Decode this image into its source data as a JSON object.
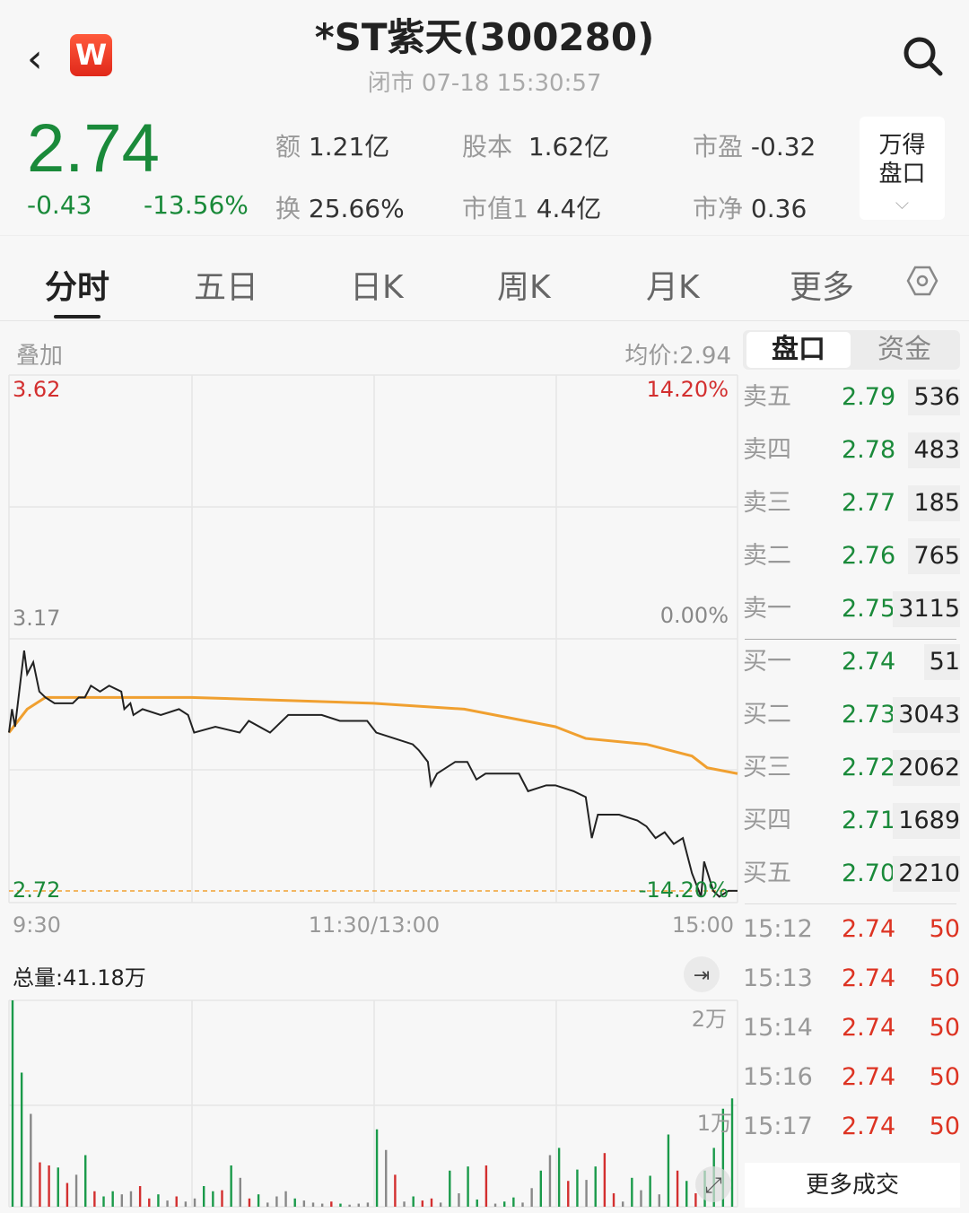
{
  "header": {
    "back_icon": "chevron-left-icon",
    "logo_letter": "W",
    "title": "*ST紫天(300280)",
    "status": "闭市  07-18 15:30:57",
    "search_icon": "search-icon"
  },
  "quote": {
    "price": "2.74",
    "change": "-0.43",
    "change_pct": "-13.56%",
    "color": "#1a8a3a",
    "stats": [
      {
        "k": "额",
        "v": "1.21亿"
      },
      {
        "k": "股本",
        "v": "1.62亿"
      },
      {
        "k": "市盈",
        "v": "-0.32"
      },
      {
        "k": "换",
        "v": "25.66%"
      },
      {
        "k": "市值1",
        "v": "4.4亿"
      },
      {
        "k": "市净",
        "v": "0.36"
      }
    ],
    "wind_button": {
      "line1": "万得",
      "line2": "盘口"
    }
  },
  "tabs": [
    "分时",
    "五日",
    "日K",
    "周K",
    "月K",
    "更多"
  ],
  "settings_icon": "hexagon-settings-icon",
  "chart": {
    "overlay_label": "叠加",
    "avg_label": "均价:2.94",
    "y_top": "3.62",
    "y_mid": "3.17",
    "y_bottom": "2.72",
    "pct_top": "14.20%",
    "pct_mid": "0.00%",
    "pct_bottom": "-14.20%",
    "x_labels": [
      "9:30",
      "11:30/13:00",
      "15:00"
    ],
    "volume_total": "总量:41.18万",
    "vol_ticks": [
      "2万",
      "1万"
    ]
  },
  "chart_data": [
    {
      "type": "line",
      "ylim": [
        2.72,
        3.62
      ],
      "colors": {
        "price": "#222222",
        "avg": "#f0a030"
      },
      "price": [
        [
          "9:30",
          3.01
        ],
        [
          "9:31",
          3.05
        ],
        [
          "9:32",
          3.02
        ],
        [
          "9:35",
          3.15
        ],
        [
          "9:36",
          3.11
        ],
        [
          "9:38",
          3.13
        ],
        [
          "9:40",
          3.08
        ],
        [
          "9:42",
          3.07
        ],
        [
          "9:45",
          3.06
        ],
        [
          "9:51",
          3.06
        ],
        [
          "9:53",
          3.07
        ],
        [
          "9:55",
          3.07
        ],
        [
          "9:57",
          3.09
        ],
        [
          "10:00",
          3.08
        ],
        [
          "10:03",
          3.09
        ],
        [
          "10:07",
          3.08
        ],
        [
          "10:08",
          3.05
        ],
        [
          "10:10",
          3.06
        ],
        [
          "10:11",
          3.04
        ],
        [
          "10:14",
          3.05
        ],
        [
          "10:20",
          3.04
        ],
        [
          "10:26",
          3.05
        ],
        [
          "10:29",
          3.04
        ],
        [
          "10:31",
          3.01
        ],
        [
          "10:38",
          3.02
        ],
        [
          "10:46",
          3.01
        ],
        [
          "10:49",
          3.03
        ],
        [
          "10:56",
          3.01
        ],
        [
          "11:02",
          3.04
        ],
        [
          "11:13",
          3.04
        ],
        [
          "11:19",
          3.03
        ],
        [
          "11:28",
          3.03
        ],
        [
          "13:01",
          3.01
        ],
        [
          "13:07",
          3.0
        ],
        [
          "13:13",
          2.99
        ],
        [
          "13:15",
          2.98
        ],
        [
          "13:18",
          2.96
        ],
        [
          "13:19",
          2.92
        ],
        [
          "13:21",
          2.94
        ],
        [
          "13:27",
          2.96
        ],
        [
          "13:31",
          2.96
        ],
        [
          "13:34",
          2.93
        ],
        [
          "13:37",
          2.94
        ],
        [
          "13:48",
          2.94
        ],
        [
          "13:51",
          2.91
        ],
        [
          "13:57",
          2.92
        ],
        [
          "14:00",
          2.92
        ],
        [
          "14:06",
          2.91
        ],
        [
          "14:10",
          2.9
        ],
        [
          "14:12",
          2.83
        ],
        [
          "14:14",
          2.87
        ],
        [
          "14:21",
          2.87
        ],
        [
          "14:27",
          2.86
        ],
        [
          "14:30",
          2.85
        ],
        [
          "14:33",
          2.83
        ],
        [
          "14:36",
          2.84
        ],
        [
          "14:39",
          2.82
        ],
        [
          "14:42",
          2.83
        ],
        [
          "14:45",
          2.77
        ],
        [
          "14:48",
          2.73
        ],
        [
          "14:49",
          2.79
        ],
        [
          "14:52",
          2.74
        ],
        [
          "14:54",
          2.73
        ],
        [
          "14:57",
          2.74
        ],
        [
          "15:00",
          2.74
        ]
      ],
      "avg": [
        [
          "9:30",
          3.01
        ],
        [
          "9:36",
          3.05
        ],
        [
          "9:42",
          3.07
        ],
        [
          "10:30",
          3.07
        ],
        [
          "11:30",
          3.06
        ],
        [
          "13:30",
          3.05
        ],
        [
          "14:00",
          3.02
        ],
        [
          "14:10",
          3.0
        ],
        [
          "14:30",
          2.99
        ],
        [
          "14:45",
          2.97
        ],
        [
          "14:50",
          2.95
        ],
        [
          "15:00",
          2.94
        ]
      ]
    },
    {
      "type": "bar",
      "ylim": [
        0,
        20000
      ],
      "colors": {
        "g": "#1a9a4a",
        "r": "#d32f2f",
        "n": "#888888"
      },
      "volumes": [
        [
          20000,
          "g"
        ],
        [
          13000,
          "g"
        ],
        [
          9000,
          "n"
        ],
        [
          4300,
          "r"
        ],
        [
          4000,
          "r"
        ],
        [
          3800,
          "g"
        ],
        [
          2300,
          "r"
        ],
        [
          3100,
          "n"
        ],
        [
          5000,
          "g"
        ],
        [
          1500,
          "r"
        ],
        [
          1000,
          "g"
        ],
        [
          1500,
          "g"
        ],
        [
          1200,
          "n"
        ],
        [
          1500,
          "n"
        ],
        [
          2000,
          "r"
        ],
        [
          800,
          "r"
        ],
        [
          1200,
          "g"
        ],
        [
          600,
          "n"
        ],
        [
          1000,
          "r"
        ],
        [
          500,
          "n"
        ],
        [
          800,
          "n"
        ],
        [
          2000,
          "g"
        ],
        [
          1500,
          "g"
        ],
        [
          1600,
          "r"
        ],
        [
          4000,
          "g"
        ],
        [
          2800,
          "n"
        ],
        [
          800,
          "r"
        ],
        [
          1200,
          "g"
        ],
        [
          400,
          "n"
        ],
        [
          1000,
          "n"
        ],
        [
          1500,
          "n"
        ],
        [
          800,
          "g"
        ],
        [
          600,
          "n"
        ],
        [
          400,
          "n"
        ],
        [
          300,
          "n"
        ],
        [
          500,
          "r"
        ],
        [
          300,
          "g"
        ],
        [
          200,
          "n"
        ],
        [
          300,
          "n"
        ],
        [
          400,
          "n"
        ],
        [
          7500,
          "g"
        ],
        [
          5500,
          "n"
        ],
        [
          3100,
          "r"
        ],
        [
          500,
          "n"
        ],
        [
          1000,
          "g"
        ],
        [
          600,
          "r"
        ],
        [
          800,
          "r"
        ],
        [
          400,
          "n"
        ],
        [
          3500,
          "g"
        ],
        [
          1300,
          "n"
        ],
        [
          3900,
          "g"
        ],
        [
          700,
          "g"
        ],
        [
          4000,
          "r"
        ],
        [
          300,
          "n"
        ],
        [
          500,
          "g"
        ],
        [
          900,
          "g"
        ],
        [
          400,
          "n"
        ],
        [
          1800,
          "n"
        ],
        [
          3500,
          "g"
        ],
        [
          5000,
          "n"
        ],
        [
          5700,
          "g"
        ],
        [
          2500,
          "r"
        ],
        [
          3600,
          "g"
        ],
        [
          2600,
          "n"
        ],
        [
          3900,
          "g"
        ],
        [
          5200,
          "r"
        ],
        [
          1300,
          "r"
        ],
        [
          500,
          "n"
        ],
        [
          2800,
          "g"
        ],
        [
          1600,
          "n"
        ],
        [
          3000,
          "g"
        ],
        [
          1200,
          "n"
        ],
        [
          7000,
          "g"
        ],
        [
          3500,
          "r"
        ],
        [
          2500,
          "g"
        ],
        [
          1300,
          "r"
        ],
        [
          3500,
          "g"
        ],
        [
          5700,
          "g"
        ],
        [
          9500,
          "g"
        ],
        [
          10500,
          "g"
        ]
      ]
    }
  ],
  "orderbook": {
    "tabs": [
      "盘口",
      "资金"
    ],
    "asks": [
      {
        "n": "卖五",
        "p": "2.79",
        "q": "536"
      },
      {
        "n": "卖四",
        "p": "2.78",
        "q": "483"
      },
      {
        "n": "卖三",
        "p": "2.77",
        "q": "185"
      },
      {
        "n": "卖二",
        "p": "2.76",
        "q": "765"
      },
      {
        "n": "卖一",
        "p": "2.75",
        "q": "3115"
      }
    ],
    "bids": [
      {
        "n": "买一",
        "p": "2.74",
        "q": "51"
      },
      {
        "n": "买二",
        "p": "2.73",
        "q": "3043"
      },
      {
        "n": "买三",
        "p": "2.72",
        "q": "2062"
      },
      {
        "n": "买四",
        "p": "2.71",
        "q": "1689"
      },
      {
        "n": "买五",
        "p": "2.70",
        "q": "2210"
      }
    ],
    "trades": [
      {
        "t": "15:12",
        "p": "2.74",
        "q": "50"
      },
      {
        "t": "15:13",
        "p": "2.74",
        "q": "50"
      },
      {
        "t": "15:14",
        "p": "2.74",
        "q": "50"
      },
      {
        "t": "15:16",
        "p": "2.74",
        "q": "50"
      },
      {
        "t": "15:17",
        "p": "2.74",
        "q": "50"
      }
    ],
    "more_trades": "更多成交"
  }
}
